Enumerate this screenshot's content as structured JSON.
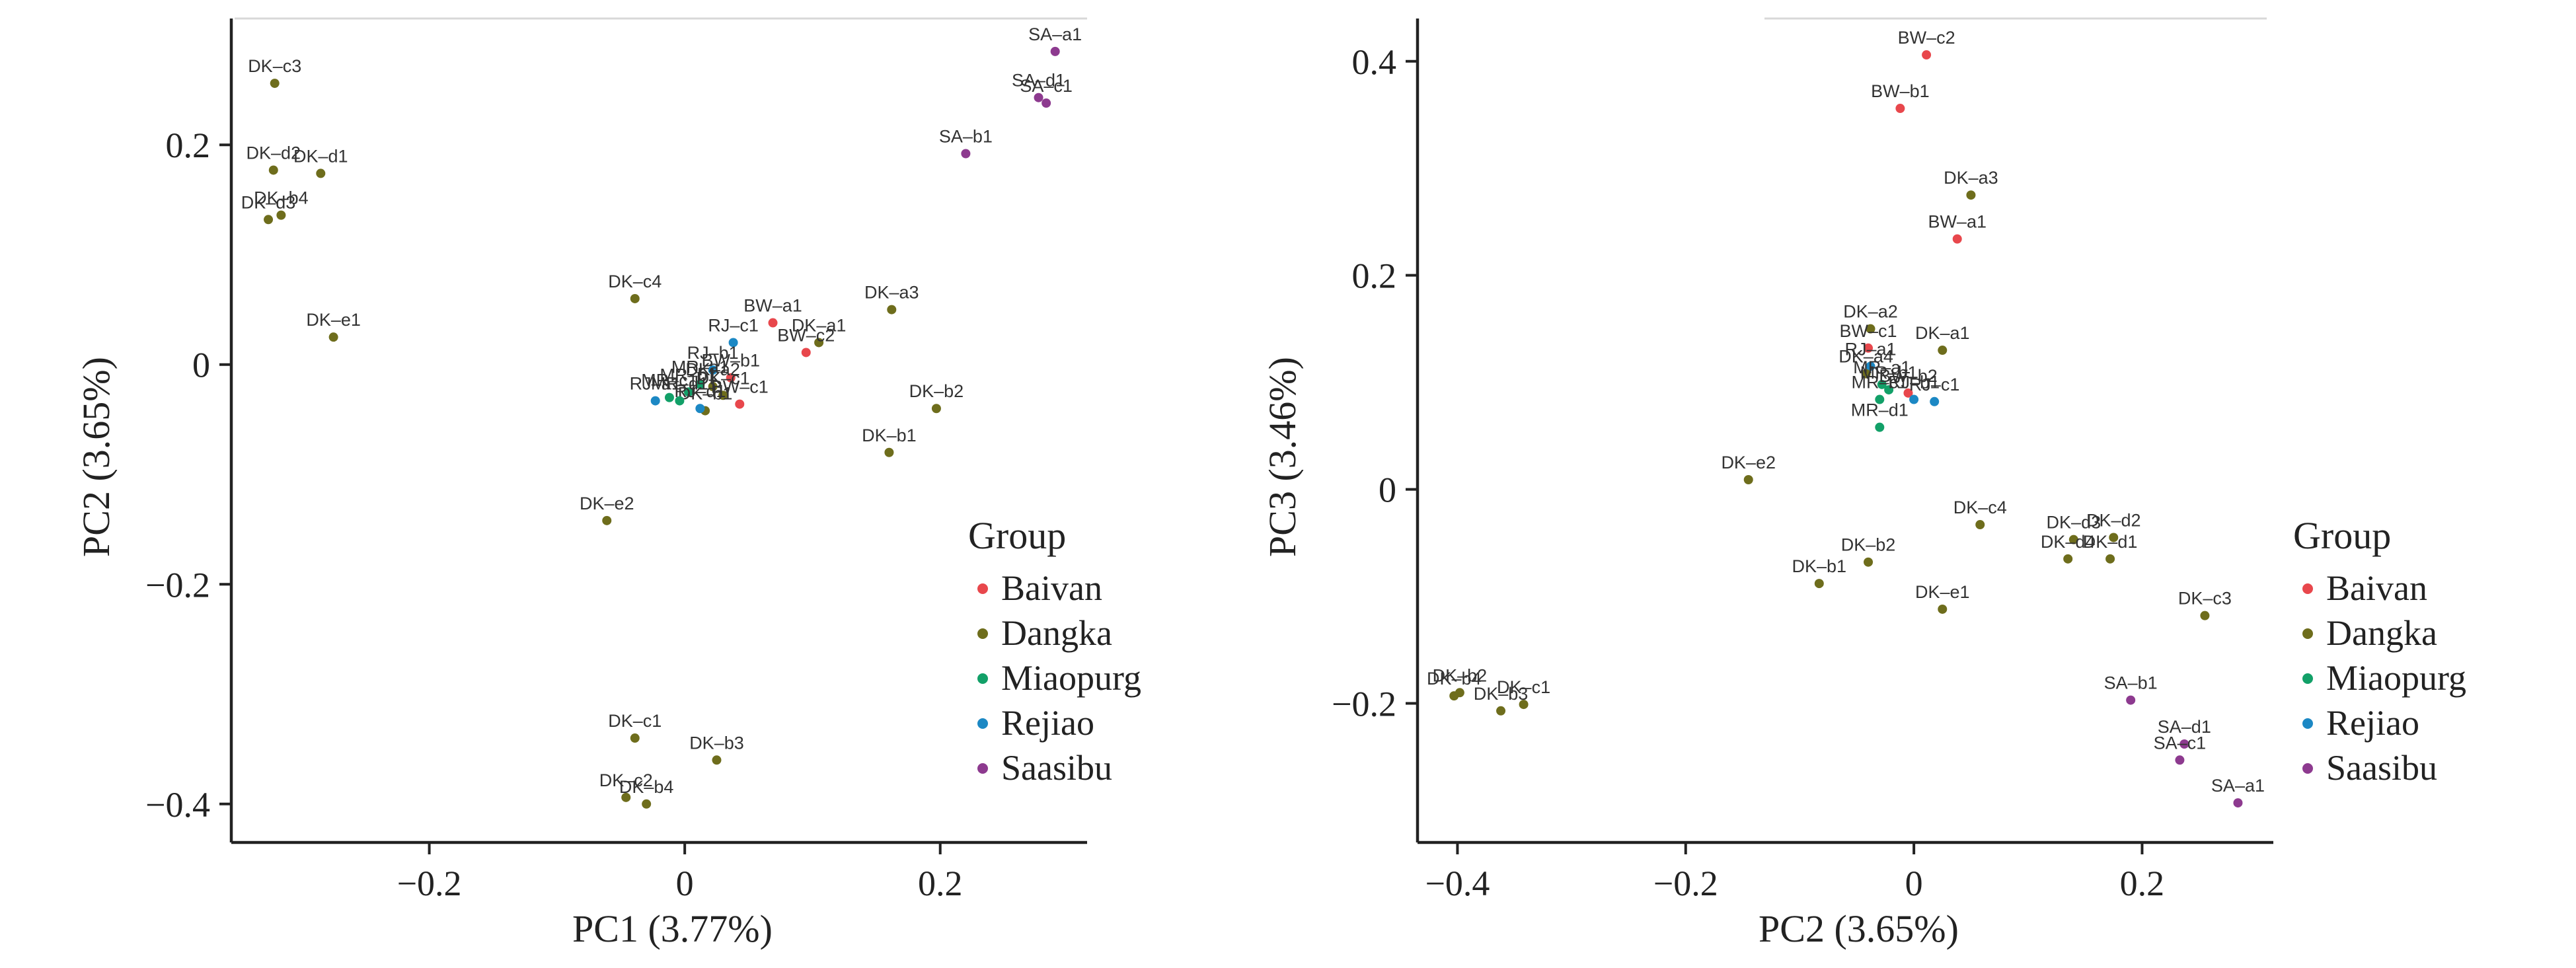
{
  "chart_data": [
    {
      "type": "scatter",
      "title": "",
      "xlabel": "PC1 (3.77%)",
      "ylabel": "PC2 (3.65%)",
      "xlim": [
        -0.355,
        0.315
      ],
      "ylim": [
        -0.435,
        0.315
      ],
      "xticks": [
        -0.2,
        0,
        0.2
      ],
      "xtick_labels": [
        "−0.2",
        "0",
        "0.2"
      ],
      "yticks": [
        0.2,
        0,
        -0.2,
        -0.4
      ],
      "ytick_labels": [
        "0.2",
        "0",
        "−0.2",
        "−0.4"
      ],
      "grid": false,
      "legend_position": "bottom-right",
      "points": [
        {
          "label": "SA–a1",
          "group": "Saasibu",
          "x": 0.29,
          "y": 0.285
        },
        {
          "label": "SA–d1",
          "group": "Saasibu",
          "x": 0.277,
          "y": 0.243
        },
        {
          "label": "SA–c1",
          "group": "Saasibu",
          "x": 0.283,
          "y": 0.238
        },
        {
          "label": "SA–b1",
          "group": "Saasibu",
          "x": 0.22,
          "y": 0.192
        },
        {
          "label": "DK–c3",
          "group": "Dangka",
          "x": -0.321,
          "y": 0.256
        },
        {
          "label": "DK–d2",
          "group": "Dangka",
          "x": -0.322,
          "y": 0.177
        },
        {
          "label": "DK–d1",
          "group": "Dangka",
          "x": -0.285,
          "y": 0.174
        },
        {
          "label": "DK–b4",
          "group": "Dangka",
          "x": -0.316,
          "y": 0.136
        },
        {
          "label": "DK–d3",
          "group": "Dangka",
          "x": -0.326,
          "y": 0.132
        },
        {
          "label": "DK–e1",
          "group": "Dangka",
          "x": -0.275,
          "y": 0.025
        },
        {
          "label": "DK–c4",
          "group": "Dangka",
          "x": -0.039,
          "y": 0.06
        },
        {
          "label": "DK–a3",
          "group": "Dangka",
          "x": 0.162,
          "y": 0.05
        },
        {
          "label": "DK–a1",
          "group": "Dangka",
          "x": 0.105,
          "y": 0.02
        },
        {
          "label": "BW–a1",
          "group": "Baivan",
          "x": 0.069,
          "y": 0.038
        },
        {
          "label": "BW–c2",
          "group": "Baivan",
          "x": 0.095,
          "y": 0.011
        },
        {
          "label": "RJ–c1",
          "group": "Rejiao",
          "x": 0.038,
          "y": 0.02
        },
        {
          "label": "RJ–b1",
          "group": "Rejiao",
          "x": 0.022,
          "y": -0.005
        },
        {
          "label": "BW–b1",
          "group": "Baivan",
          "x": 0.036,
          "y": -0.012
        },
        {
          "label": "MR–a1",
          "group": "Miaopurg",
          "x": 0.012,
          "y": -0.018
        },
        {
          "label": "MR–b1",
          "group": "Miaopurg",
          "x": 0.003,
          "y": -0.025
        },
        {
          "label": "DK–a2",
          "group": "Dangka",
          "x": 0.022,
          "y": -0.02
        },
        {
          "label": "DK–c1",
          "group": "Dangka",
          "x": 0.03,
          "y": -0.028
        },
        {
          "label": "BW–c1",
          "group": "Baivan",
          "x": 0.043,
          "y": -0.036
        },
        {
          "label": "DK–b1",
          "group": "Dangka",
          "x": 0.016,
          "y": -0.042
        },
        {
          "label": "RJ–a1",
          "group": "Rejiao",
          "x": -0.023,
          "y": -0.033
        },
        {
          "label": "RJ–d1",
          "group": "Rejiao",
          "x": 0.012,
          "y": -0.04
        },
        {
          "label": "MR–c1",
          "group": "Miaopurg",
          "x": -0.012,
          "y": -0.03
        },
        {
          "label": "MR–d1",
          "group": "Miaopurg",
          "x": -0.004,
          "y": -0.033
        },
        {
          "label": "DK–b2",
          "group": "Dangka",
          "x": 0.197,
          "y": -0.04
        },
        {
          "label": "DK–b1",
          "group": "Dangka",
          "x": 0.16,
          "y": -0.08
        },
        {
          "label": "DK–e2",
          "group": "Dangka",
          "x": -0.061,
          "y": -0.142
        },
        {
          "label": "DK–c1",
          "group": "Dangka",
          "x": -0.039,
          "y": -0.34
        },
        {
          "label": "DK–b3",
          "group": "Dangka",
          "x": 0.025,
          "y": -0.36
        },
        {
          "label": "DK–c2",
          "group": "Dangka",
          "x": -0.046,
          "y": -0.394
        },
        {
          "label": "DK–b4",
          "group": "Dangka",
          "x": -0.03,
          "y": -0.4
        }
      ]
    },
    {
      "type": "scatter",
      "title": "",
      "xlabel": "PC2 (3.65%)",
      "ylabel": "PC3 (3.46%)",
      "xlim": [
        -0.435,
        0.315
      ],
      "ylim": [
        -0.33,
        0.44
      ],
      "xticks": [
        -0.4,
        -0.2,
        0,
        0.2
      ],
      "xtick_labels": [
        "−0.4",
        "−0.2",
        "0",
        "0.2"
      ],
      "yticks": [
        0.4,
        0.2,
        0,
        -0.2
      ],
      "ytick_labels": [
        "0.4",
        "0.2",
        "0",
        "−0.2"
      ],
      "grid": false,
      "legend_position": "bottom-right",
      "points": [
        {
          "label": "BW–c2",
          "group": "Baivan",
          "x": 0.011,
          "y": 0.406
        },
        {
          "label": "BW–b1",
          "group": "Baivan",
          "x": -0.012,
          "y": 0.356
        },
        {
          "label": "DK–a3",
          "group": "Dangka",
          "x": 0.05,
          "y": 0.275
        },
        {
          "label": "BW–a1",
          "group": "Baivan",
          "x": 0.038,
          "y": 0.234
        },
        {
          "label": "DK–a2",
          "group": "Dangka",
          "x": -0.038,
          "y": 0.15
        },
        {
          "label": "BW–c1",
          "group": "Baivan",
          "x": -0.04,
          "y": 0.132
        },
        {
          "label": "DK–a1",
          "group": "Dangka",
          "x": 0.025,
          "y": 0.13
        },
        {
          "label": "RJ–a1",
          "group": "Rejiao",
          "x": -0.038,
          "y": 0.115
        },
        {
          "label": "DK–a4",
          "group": "Dangka",
          "x": -0.042,
          "y": 0.108
        },
        {
          "label": "MR–a1",
          "group": "Miaopurg",
          "x": -0.028,
          "y": 0.098
        },
        {
          "label": "MR–b1",
          "group": "Miaopurg",
          "x": -0.022,
          "y": 0.093
        },
        {
          "label": "BW–b2",
          "group": "Baivan",
          "x": -0.005,
          "y": 0.09
        },
        {
          "label": "RJ–b1",
          "group": "Rejiao",
          "x": 0.0,
          "y": 0.084
        },
        {
          "label": "RJ–c1",
          "group": "Rejiao",
          "x": 0.018,
          "y": 0.082
        },
        {
          "label": "MR–c1",
          "group": "Miaopurg",
          "x": -0.03,
          "y": 0.084
        },
        {
          "label": "MR–d1",
          "group": "Miaopurg",
          "x": -0.03,
          "y": 0.058
        },
        {
          "label": "DK–e2",
          "group": "Dangka",
          "x": -0.145,
          "y": 0.009
        },
        {
          "label": "DK–c4",
          "group": "Dangka",
          "x": 0.058,
          "y": -0.033
        },
        {
          "label": "DK–d3",
          "group": "Dangka",
          "x": 0.14,
          "y": -0.047
        },
        {
          "label": "DK–d2",
          "group": "Dangka",
          "x": 0.175,
          "y": -0.045
        },
        {
          "label": "DK–d4",
          "group": "Dangka",
          "x": 0.135,
          "y": -0.065
        },
        {
          "label": "DK–d1",
          "group": "Dangka",
          "x": 0.172,
          "y": -0.065
        },
        {
          "label": "DK–b2",
          "group": "Dangka",
          "x": -0.04,
          "y": -0.068
        },
        {
          "label": "DK–b1",
          "group": "Dangka",
          "x": -0.083,
          "y": -0.088
        },
        {
          "label": "DK–e1",
          "group": "Dangka",
          "x": 0.025,
          "y": -0.112
        },
        {
          "label": "DK–c3",
          "group": "Dangka",
          "x": 0.255,
          "y": -0.118
        },
        {
          "label": "DK–b4",
          "group": "Dangka",
          "x": -0.403,
          "y": -0.193
        },
        {
          "label": "DK–b2",
          "group": "Dangka",
          "x": -0.398,
          "y": -0.19
        },
        {
          "label": "DK–b3",
          "group": "Dangka",
          "x": -0.362,
          "y": -0.207
        },
        {
          "label": "DK–c1",
          "group": "Dangka",
          "x": -0.342,
          "y": -0.201
        },
        {
          "label": "SA–b1",
          "group": "Saasibu",
          "x": 0.19,
          "y": -0.197
        },
        {
          "label": "SA–d1",
          "group": "Saasibu",
          "x": 0.237,
          "y": -0.238
        },
        {
          "label": "SA–c1",
          "group": "Saasibu",
          "x": 0.233,
          "y": -0.253
        },
        {
          "label": "SA–a1",
          "group": "Saasibu",
          "x": 0.284,
          "y": -0.293
        }
      ]
    }
  ],
  "legend": {
    "title": "Group",
    "items": [
      {
        "name": "Baivan",
        "color": "#e8474c"
      },
      {
        "name": "Dangka",
        "color": "#6e6d1c"
      },
      {
        "name": "Miaopurg",
        "color": "#12a068"
      },
      {
        "name": "Rejiao",
        "color": "#1c88c4"
      },
      {
        "name": "Saasibu",
        "color": "#8d3a8f"
      }
    ]
  }
}
